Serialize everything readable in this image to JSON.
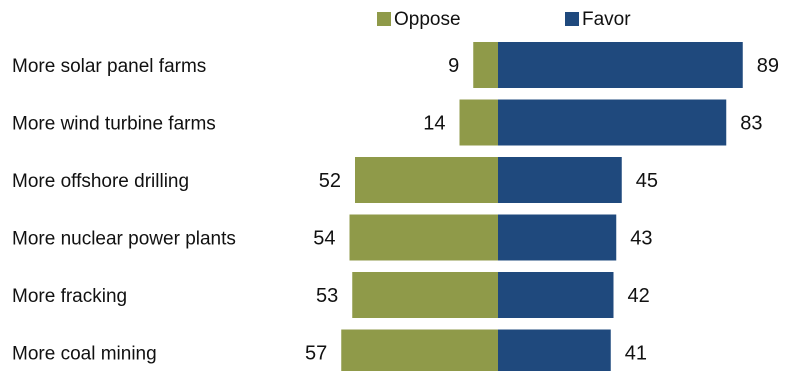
{
  "chart_data": {
    "type": "bar",
    "orientation": "horizontal-diverging",
    "categories": [
      "More solar panel farms",
      "More wind turbine farms",
      "More offshore drilling",
      "More nuclear power plants",
      "More fracking",
      "More coal mining"
    ],
    "series": [
      {
        "name": "Oppose",
        "color": "#8f9a49",
        "values": [
          9,
          14,
          52,
          54,
          53,
          57
        ]
      },
      {
        "name": "Favor",
        "color": "#1f497d",
        "values": [
          89,
          83,
          45,
          43,
          42,
          41
        ]
      }
    ],
    "legend_position": "top",
    "grid": false
  }
}
